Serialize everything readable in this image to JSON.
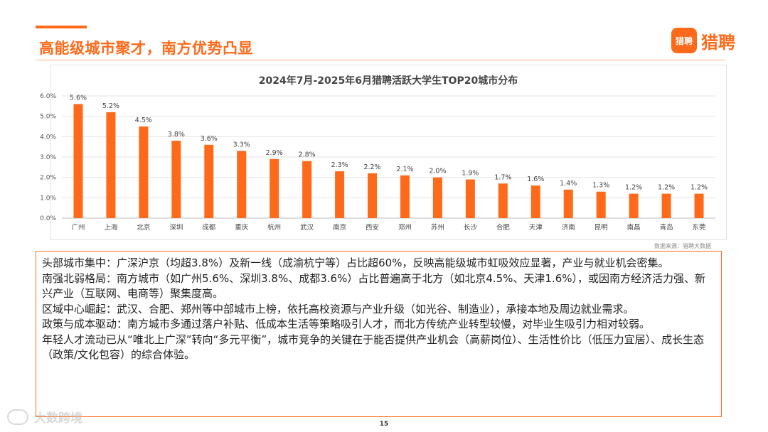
{
  "header": {
    "title": "高能级城市聚才，南方优势凸显",
    "brand_logo_text": "猎聘",
    "brand_name": "猎聘"
  },
  "chart_data": {
    "type": "bar",
    "title": "2024年7月-2025年6月猎聘活跃大学生TOP20城市分布",
    "categories": [
      "广州",
      "上海",
      "北京",
      "深圳",
      "成都",
      "重庆",
      "杭州",
      "武汉",
      "南京",
      "西安",
      "郑州",
      "苏州",
      "长沙",
      "合肥",
      "天津",
      "济南",
      "昆明",
      "南昌",
      "青岛",
      "东莞"
    ],
    "values": [
      5.6,
      5.2,
      4.5,
      3.8,
      3.6,
      3.3,
      2.9,
      2.8,
      2.3,
      2.2,
      2.1,
      2.0,
      1.9,
      1.7,
      1.6,
      1.4,
      1.3,
      1.2,
      1.2,
      1.2
    ],
    "value_labels": [
      "5.6%",
      "5.2%",
      "4.5%",
      "3.8%",
      "3.6%",
      "3.3%",
      "2.9%",
      "2.8%",
      "2.3%",
      "2.2%",
      "2.1%",
      "2.0%",
      "1.9%",
      "1.7%",
      "1.6%",
      "1.4%",
      "1.3%",
      "1.2%",
      "1.2%",
      "1.2%"
    ],
    "ylim": [
      0,
      6
    ],
    "yticks": [
      "0.0%",
      "1.0%",
      "2.0%",
      "3.0%",
      "4.0%",
      "5.0%",
      "6.0%"
    ],
    "grid": true,
    "bar_color": "#ff6a1a",
    "xlabel": "",
    "ylabel": ""
  },
  "source_note": "数据来源：猎聘大数据",
  "paragraphs": [
    "头部城市集中：广深沪京（均超3.8%）及新一线（成渝杭宁等）占比超60%，反映高能级城市虹吸效应显著，产业与就业机会密集。",
    "南强北弱格局：南方城市（如广州5.6%、深圳3.8%、成都3.6%）占比普遍高于北方（如北京4.5%、天津1.6%），或因南方经济活力强、新兴产业（互联网、电商等）聚集度高。",
    "区域中心崛起：武汉、合肥、郑州等中部城市上榜，依托高校资源与产业升级（如光谷、制造业），承接本地及周边就业需求。",
    "政策与成本驱动：南方城市多通过落户补贴、低成本生活等策略吸引人才，而北方传统产业转型较慢，对毕业生吸引力相对较弱。",
    "年轻人才流动已从“唯北上广深”转向“多元平衡”，城市竞争的关键在于能否提供产业机会（高薪岗位）、生活性价比（低压力宜居）、成长生态（政策/文化包容）的综合体验。"
  ],
  "page_number": "15",
  "watermark_text": "大数跨境"
}
